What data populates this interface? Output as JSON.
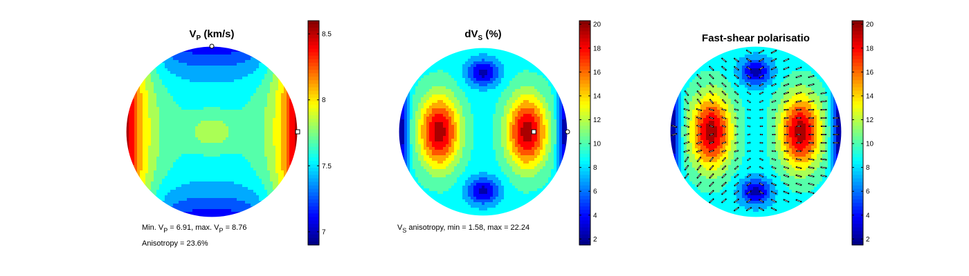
{
  "chart_data": [
    {
      "type": "heatmap",
      "title": "V",
      "title_sub": "P",
      "title_suffix": " (km/s)",
      "field": "vp",
      "levels": [
        6.91,
        8.76
      ],
      "colorbar": {
        "min": 6.9,
        "max": 8.6,
        "ticks": [
          "7",
          "7.5",
          "8",
          "8.5"
        ],
        "tick_values": [
          7,
          7.5,
          8,
          8.5
        ]
      },
      "markers": [
        {
          "kind": "circle",
          "at": "top"
        },
        {
          "kind": "square",
          "at": "right"
        }
      ],
      "annotations": {
        "line1": {
          "a": "Min. V",
          "a_sub": "P",
          "b": " =  6.91, max. V",
          "b_sub": "P",
          "c": " =  8.76"
        },
        "line2": "Anisotropy =  23.6%"
      }
    },
    {
      "type": "heatmap",
      "title": "dV",
      "title_sub": "S",
      "title_suffix": " (%)",
      "field": "dvs",
      "levels": [
        1.58,
        22.24
      ],
      "colorbar": {
        "min": 1.5,
        "max": 20.3,
        "ticks": [
          "2",
          "4",
          "6",
          "8",
          "10",
          "12",
          "14",
          "16",
          "18",
          "20"
        ],
        "tick_values": [
          2,
          4,
          6,
          8,
          10,
          12,
          14,
          16,
          18,
          20
        ]
      },
      "markers": [
        {
          "kind": "square",
          "at": "right-inner"
        },
        {
          "kind": "circle",
          "at": "right"
        }
      ],
      "annotations": {
        "line1": {
          "a": "V",
          "a_sub": "S",
          "b": " anisotropy, min =  1.58, max = 22.24"
        }
      }
    },
    {
      "type": "heatmap",
      "title": "Fast-shear polarisatio",
      "field": "dvs",
      "overlay": "polarisation-ticks",
      "colorbar": {
        "min": 1.5,
        "max": 20.3,
        "ticks": [
          "2",
          "4",
          "6",
          "8",
          "10",
          "12",
          "14",
          "16",
          "18",
          "20"
        ],
        "tick_values": [
          2,
          4,
          6,
          8,
          10,
          12,
          14,
          16,
          18,
          20
        ]
      }
    }
  ],
  "colormap": "jet"
}
